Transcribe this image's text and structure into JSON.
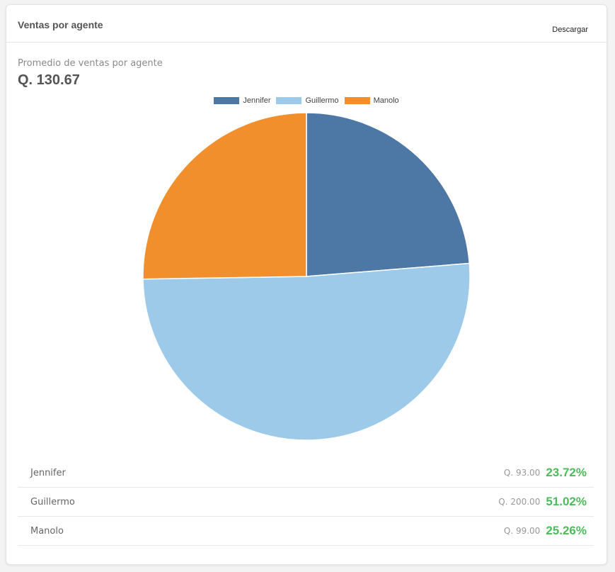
{
  "card": {
    "title": "Ventas por agente",
    "download_label": "Descargar",
    "average_label": "Promedio de ventas por agente",
    "average_value": "Q. 130.67"
  },
  "chart_data": {
    "type": "pie",
    "categories": [
      "Jennifer",
      "Guillermo",
      "Manolo"
    ],
    "values": [
      93.0,
      200.0,
      99.0
    ],
    "percentages": [
      23.72,
      51.02,
      25.26
    ],
    "colors": [
      "#4d77a5",
      "#9ecae9",
      "#f28f2d"
    ],
    "legend_position": "top"
  },
  "agents": [
    {
      "name": "Jennifer",
      "amount": "Q. 93.00",
      "percent": "23.72%"
    },
    {
      "name": "Guillermo",
      "amount": "Q. 200.00",
      "percent": "51.02%"
    },
    {
      "name": "Manolo",
      "amount": "Q. 99.00",
      "percent": "25.26%"
    }
  ]
}
